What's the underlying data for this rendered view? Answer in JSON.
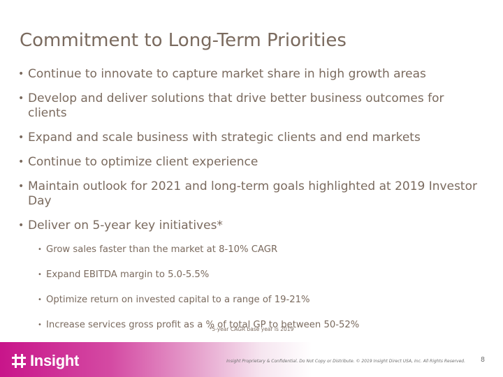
{
  "slide": {
    "title": "Commitment to Long-Term Priorities",
    "bullets": [
      "Continue to innovate to capture market share in high growth areas",
      "Develop and deliver solutions that drive better business outcomes for clients",
      "Expand and scale business with strategic clients and end markets",
      "Continue to optimize client experience",
      "Maintain outlook for 2021 and long-term goals highlighted at 2019 Investor Day",
      "Deliver on 5-year key initiatives*"
    ],
    "sub_bullets": [
      "Grow sales faster than the market at 8-10% CAGR",
      "Expand EBITDA margin to 5.0-5.5%",
      "Optimize return on invested capital to a range of 19-21%",
      "Increase services gross profit as a % of total GP to between 50-52%"
    ],
    "bullet_glyph": "•",
    "footnote": "*5-year CAGR base year is 2019"
  },
  "footer": {
    "logo_text": "Insight",
    "logo_icon": "insight-logo-mark",
    "legal": "Insight Proprietary & Confidential. Do Not Copy or Distribute. © 2019 Insight Direct USA, Inc. All Rights Reserved.",
    "page_number": "8"
  },
  "colors": {
    "text": "#7a6a5e",
    "brand_magenta": "#c8158a",
    "footer_text": "#6e6e6e"
  }
}
